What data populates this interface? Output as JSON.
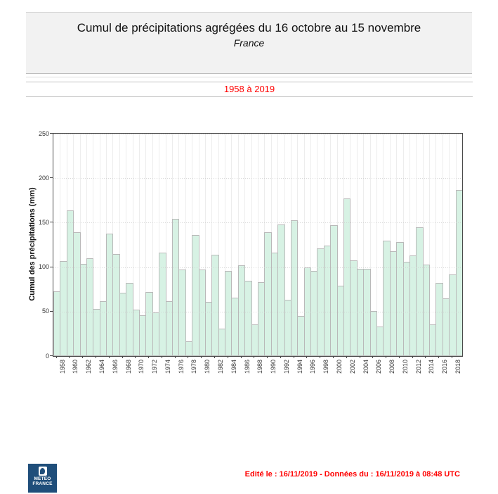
{
  "header": {
    "title": "Cumul de précipitations agrégées du 16 octobre au 15 novembre",
    "subtitle": "France"
  },
  "period": {
    "label": "1958 à 2019"
  },
  "chart_data": {
    "type": "bar",
    "title": "Cumul de précipitations agrégées du 16 octobre au 15 novembre - France",
    "subtitle": "1958 à 2019",
    "xlabel": "",
    "ylabel": "Cumul des précipitations (mm)",
    "ylim": [
      0,
      250
    ],
    "yticks": [
      0,
      50,
      100,
      150,
      200,
      250
    ],
    "xtick_label_step": 2,
    "grid": true,
    "legend": "none",
    "bar_color": "#d7f2e4",
    "bar_border_color": "#b9b9b9",
    "categories": [
      1958,
      1959,
      1960,
      1961,
      1962,
      1963,
      1964,
      1965,
      1966,
      1967,
      1968,
      1969,
      1970,
      1971,
      1972,
      1973,
      1974,
      1975,
      1976,
      1977,
      1978,
      1979,
      1980,
      1981,
      1982,
      1983,
      1984,
      1985,
      1986,
      1987,
      1988,
      1989,
      1990,
      1991,
      1992,
      1993,
      1994,
      1995,
      1996,
      1997,
      1998,
      1999,
      2000,
      2001,
      2002,
      2003,
      2004,
      2005,
      2006,
      2007,
      2008,
      2009,
      2010,
      2011,
      2012,
      2013,
      2014,
      2015,
      2016,
      2017,
      2018,
      2019
    ],
    "values": [
      73,
      107,
      164,
      139,
      104,
      110,
      53,
      62,
      138,
      115,
      71,
      82,
      52,
      46,
      72,
      49,
      116,
      62,
      154,
      97,
      17,
      136,
      97,
      61,
      114,
      31,
      96,
      66,
      102,
      85,
      36,
      83,
      139,
      116,
      148,
      63,
      153,
      45,
      100,
      96,
      121,
      124,
      147,
      79,
      177,
      108,
      98,
      98,
      51,
      33,
      130,
      118,
      128,
      106,
      113,
      145,
      103,
      36,
      82,
      65,
      92,
      187
    ]
  },
  "footer": {
    "edited_label": "Edité le : 16/11/2019 - Données du : 16/11/2019 à 08:48 UTC",
    "logo_line1": "METEO",
    "logo_line2": "FRANCE"
  },
  "colors": {
    "accent_red": "#ff0000",
    "logo_navy": "#1f4e7a",
    "header_background": "#f2f2f2",
    "plot_border": "#4a4a4a"
  }
}
